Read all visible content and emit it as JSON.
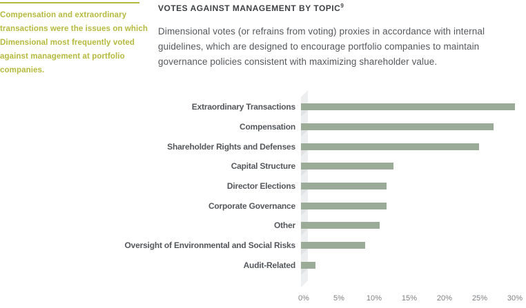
{
  "sidebar": {
    "note": "Compensation and extraordinary transactions were the issues on which Dimensional most frequently voted against management at portfolio companies."
  },
  "header": {
    "title": "VOTES AGAINST MANAGEMENT BY TOPIC",
    "footnote_marker": "9"
  },
  "intro": "Dimensional votes (or refrains from voting) proxies in accordance with internal guidelines, which are designed to encourage portfolio companies to maintain governance policies consistent with maximizing shareholder value.",
  "chart_data": {
    "type": "bar",
    "orientation": "horizontal",
    "title": "VOTES AGAINST MANAGEMENT BY TOPIC",
    "categories": [
      "Extraordinary Transactions",
      "Compensation",
      "Shareholder Rights and Defenses",
      "Capital Structure",
      "Director Elections",
      "Corporate Governance",
      "Other",
      "Oversight of Environmental and Social Risks",
      "Audit-Related"
    ],
    "values": [
      30,
      27,
      25,
      13,
      12,
      12,
      11,
      9,
      2
    ],
    "unit": "%",
    "xlim": [
      0,
      30
    ],
    "x_ticks": [
      "0%",
      "5%",
      "10%",
      "15%",
      "20%",
      "25%",
      "30%"
    ],
    "grid": "off",
    "legend": "none",
    "bar_color": "#9aac98",
    "axis_band_color": "#eceef0"
  },
  "colors": {
    "accent_olive": "#b5b93c",
    "heading_text": "#3f4245",
    "body_text": "#55585c",
    "tick_text": "#7d8084",
    "bar_green": "#9aac98",
    "axis_band": "#eceef0",
    "bar_shadow": "#e0e2e4"
  }
}
